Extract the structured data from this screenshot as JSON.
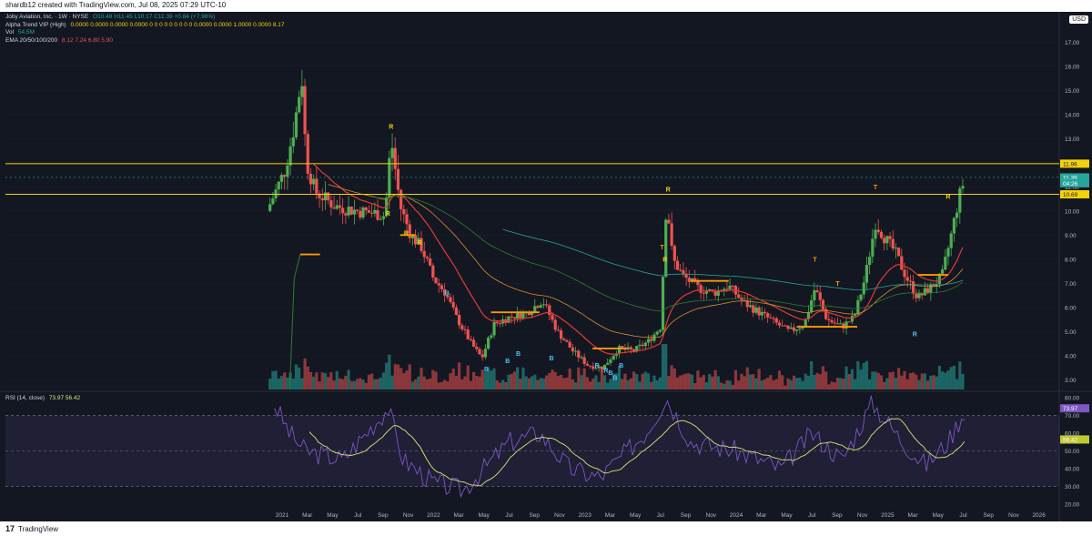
{
  "header": {
    "caption": "shardb12 created with TradingView.com, Jul 08, 2025 07:29 UTC-10"
  },
  "usd_label": "USD",
  "legend": {
    "symbol": "Joby Aviation, Inc. · 1W · NYSE",
    "ohlc": "O10.48 H11.45 L10.17 C11.39 +0.84 (+7.96%)",
    "alpha": "Alpha Trend VIP (High)",
    "alpha_values": "0.0000 0.0000 0.0000 0.0000 0 0 0 0 0 0 0 0 0 0.0000 0.0000 1.0000 0.0000 8.17",
    "vol": "Vol",
    "vol_value": "54.5M",
    "ema": "EMA 20/50/100/200",
    "ema_values": "8.12 7.24 6.80 5.90",
    "rsi": "RSI (14, close)",
    "rsi_values": "73.97 56.42"
  },
  "footer": {
    "logo": "17",
    "brand": "TradingView"
  },
  "colors": {
    "background": "#131722",
    "up": "#26a69a",
    "up_bright": "#4caf50",
    "down": "#ef5350",
    "resistance": "#f5d30a",
    "level_orange": "#ff9800",
    "ema_red": "#e53935",
    "ema_orange": "#d98f2e",
    "ema_green": "#2e7d32",
    "ema_teal": "#26a69a",
    "rsi": "#7e57c2",
    "rsi_ma": "#dce776"
  },
  "chart_data": {
    "type": "candlestick",
    "price_axis": {
      "ticks": [
        "17.00",
        "16.00",
        "15.00",
        "14.00",
        "13.00",
        "12.00",
        "11.00",
        "10.00",
        "9.00",
        "8.00",
        "7.00",
        "6.00",
        "5.00",
        "4.00",
        "3.00"
      ],
      "ylim": [
        2.6,
        17.5
      ]
    },
    "horizontal_levels": [
      {
        "label": "11.96",
        "value": 11.96
      },
      {
        "label": "10.69",
        "value": 10.69
      }
    ],
    "price_tags": [
      {
        "label": "11.39",
        "value": 11.39
      },
      {
        "label": "04:26",
        "value": 11.15
      }
    ],
    "x_ticks": [
      "2021",
      "Mar",
      "May",
      "Jul",
      "Sep",
      "Nov",
      "2022",
      "Mar",
      "May",
      "Jul",
      "Sep",
      "Nov",
      "2023",
      "Mar",
      "May",
      "Jul",
      "Sep",
      "Nov",
      "2024",
      "Mar",
      "May",
      "Jul",
      "Sep",
      "Nov",
      "2025",
      "Mar",
      "May",
      "Jul",
      "Sep",
      "Nov",
      "2026"
    ],
    "signals": [
      {
        "text": "R",
        "date": 2021.72,
        "value": 13.4
      },
      {
        "text": "R",
        "date": 2021.7,
        "value": 9.8
      },
      {
        "text": "R",
        "date": 2021.82,
        "value": 9.0
      },
      {
        "text": "R",
        "date": 2021.91,
        "value": 8.6
      },
      {
        "text": "B",
        "date": 2022.09,
        "value": 6.5
      },
      {
        "text": "B",
        "date": 2022.35,
        "value": 3.35
      },
      {
        "text": "B",
        "date": 2022.49,
        "value": 3.7
      },
      {
        "text": "B",
        "date": 2022.56,
        "value": 4.0
      },
      {
        "text": "B",
        "date": 2022.78,
        "value": 3.8
      },
      {
        "text": "R",
        "date": 2023.08,
        "value": 3.5
      },
      {
        "text": "B",
        "date": 2023.17,
        "value": 3.2
      },
      {
        "text": "B",
        "date": 2023.2,
        "value": 3.0
      },
      {
        "text": "B",
        "date": 2023.24,
        "value": 3.5
      },
      {
        "text": "R",
        "date": 2023.14,
        "value": 3.3
      },
      {
        "text": "T",
        "date": 2023.51,
        "value": 8.4
      },
      {
        "text": "R",
        "date": 2023.53,
        "value": 7.9
      },
      {
        "text": "R",
        "date": 2023.55,
        "value": 10.8
      },
      {
        "text": "T",
        "date": 2024.52,
        "value": 7.9
      },
      {
        "text": "T",
        "date": 2024.67,
        "value": 6.9
      },
      {
        "text": "T",
        "date": 2024.92,
        "value": 10.9
      },
      {
        "text": "R",
        "date": 2025.18,
        "value": 4.8
      },
      {
        "text": "R",
        "date": 2025.4,
        "value": 10.5
      }
    ],
    "rsi_axis": {
      "ticks": [
        "80.00",
        "70.00",
        "60.00",
        "50.00",
        "40.00",
        "30.00",
        "20.00"
      ],
      "ylim": [
        18,
        82
      ]
    },
    "rsi_tags": [
      {
        "label": "73.97",
        "value": 73.97
      },
      {
        "label": "56.42",
        "value": 56.42
      }
    ]
  }
}
